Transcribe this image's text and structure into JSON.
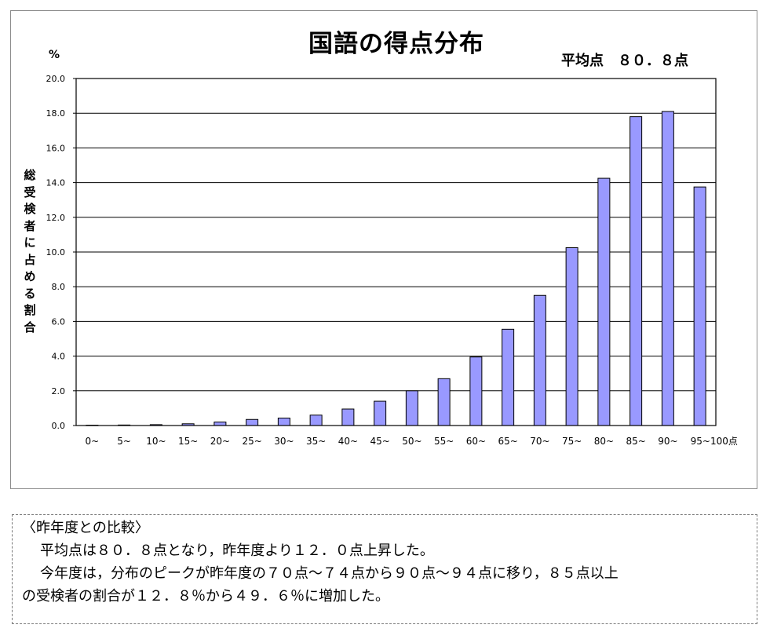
{
  "chart_data": {
    "type": "bar",
    "title": "国語の得点分布",
    "average_label": "平均点　８０．８点",
    "y_unit": "%",
    "ylabel": "総受検者に占める割合",
    "ylim": [
      0,
      20
    ],
    "yticks": [
      "0.0",
      "2.0",
      "4.0",
      "6.0",
      "8.0",
      "10.0",
      "12.0",
      "14.0",
      "16.0",
      "18.0",
      "20.0"
    ],
    "categories": [
      "0~",
      "5~",
      "10~",
      "15~",
      "20~",
      "25~",
      "30~",
      "35~",
      "40~",
      "45~",
      "50~",
      "55~",
      "60~",
      "65~",
      "70~",
      "75~",
      "80~",
      "85~",
      "90~",
      "95~100点"
    ],
    "values": [
      0.02,
      0.03,
      0.05,
      0.1,
      0.2,
      0.35,
      0.43,
      0.6,
      0.95,
      1.4,
      2.0,
      2.7,
      3.95,
      5.55,
      7.5,
      10.25,
      14.25,
      17.8,
      18.1,
      13.75
    ],
    "bar_color": "#9999ff",
    "grid": true
  },
  "comparison": {
    "heading": "〈昨年度との比較〉",
    "line1": "平均点は８０．８点となり，昨年度より１２．０点上昇した。",
    "line2": "今年度は，分布のピークが昨年度の７０点～７４点から９０点～９４点に移り，８５点以上",
    "line3": "の受検者の割合が１２．８％から４９．６％に増加した。"
  }
}
